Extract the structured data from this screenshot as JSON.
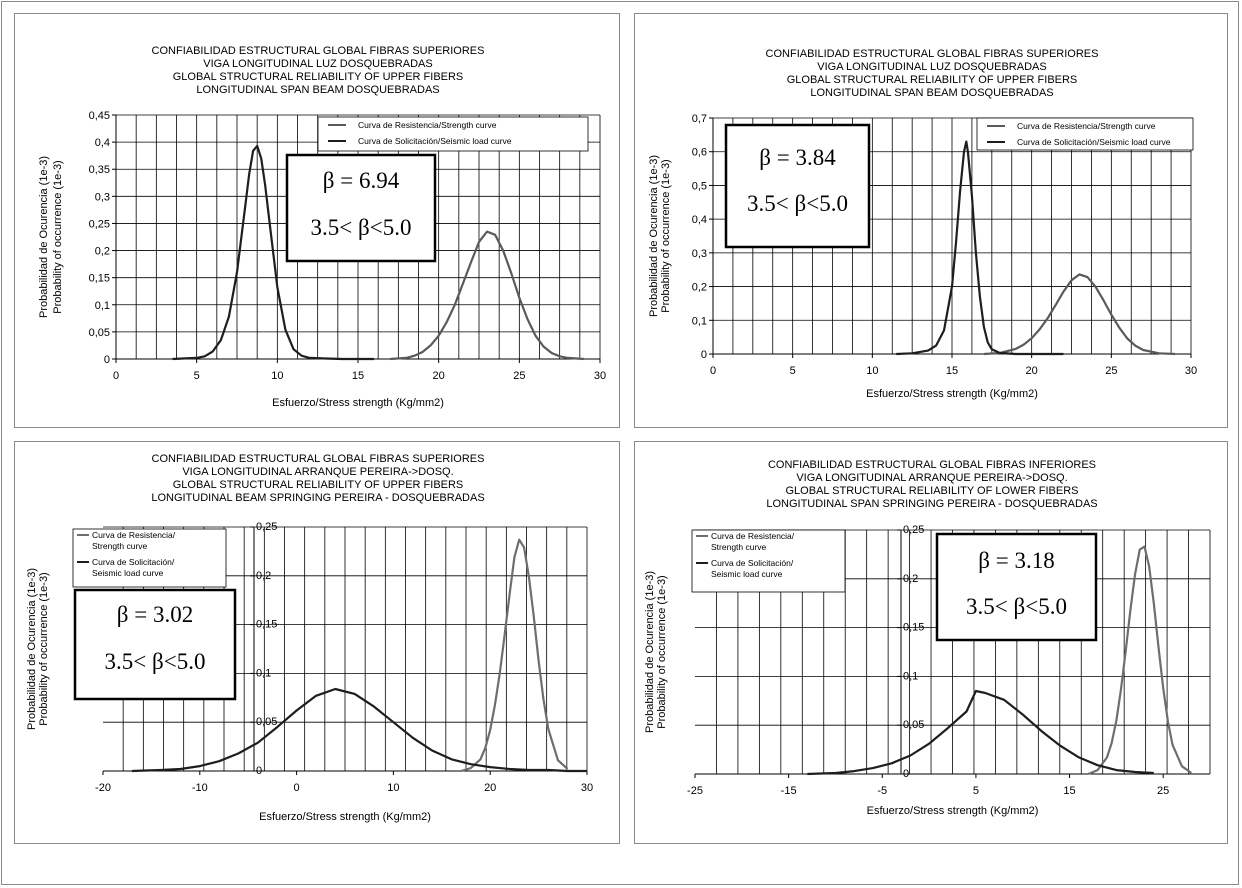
{
  "chart_data": [
    {
      "type": "line",
      "title": [
        "CONFIABILIDAD ESTRUCTURAL GLOBAL FIBRAS SUPERIORES",
        "VIGA LONGITUDINAL LUZ DOSQUEBRADAS",
        "GLOBAL STRUCTURAL RELIABILITY OF UPPER FIBERS",
        "LONGITUDINAL SPAN BEAM DOSQUEBRADAS"
      ],
      "xlabel": "Esfuerzo/Stress strength (Kg/mm2)",
      "ylabel": [
        "Probabilidad de Ocurencia (1e-3)",
        "Probability of occurrence (1e-3)"
      ],
      "xlim": [
        0,
        30
      ],
      "ylim": [
        0,
        0.45
      ],
      "xticks": [
        0,
        5,
        10,
        15,
        20,
        25,
        30
      ],
      "yticks": [
        0,
        0.05,
        0.1,
        0.15,
        0.2,
        0.25,
        0.3,
        0.35,
        0.4,
        0.45
      ],
      "xtick_labels": [
        "0",
        "5",
        "10",
        "15",
        "20",
        "25",
        "30"
      ],
      "ytick_labels": [
        "0",
        "0,05",
        "0,1",
        "0,15",
        "0,2",
        "0,25",
        "0,3",
        "0,35",
        "0,4",
        "0,45"
      ],
      "grid": true,
      "legend_position": "top-right",
      "series": [
        {
          "name": "Curva de Resistencia/Strength curve",
          "color": "#5a5a5a",
          "x": [
            17,
            18,
            18.5,
            19,
            19.5,
            20,
            20.5,
            21,
            21.5,
            22,
            22.5,
            23,
            23.5,
            24,
            24.5,
            25,
            25.5,
            26,
            26.5,
            27,
            27.5,
            28,
            29
          ],
          "y": [
            0,
            0.002,
            0.006,
            0.013,
            0.025,
            0.043,
            0.068,
            0.1,
            0.139,
            0.178,
            0.216,
            0.235,
            0.229,
            0.2,
            0.158,
            0.113,
            0.074,
            0.043,
            0.023,
            0.011,
            0.005,
            0.002,
            0
          ]
        },
        {
          "name": "Curva de Solicitación/Seismic load curve",
          "color": "#1e1e1e",
          "x": [
            3.5,
            5,
            5.5,
            6,
            6.5,
            7,
            7.5,
            8,
            8.25,
            8.5,
            8.75,
            9,
            9.25,
            9.5,
            10,
            10.5,
            11,
            11.5,
            12,
            13,
            14,
            16
          ],
          "y": [
            0,
            0.002,
            0.005,
            0.014,
            0.035,
            0.078,
            0.16,
            0.28,
            0.34,
            0.384,
            0.393,
            0.37,
            0.32,
            0.256,
            0.133,
            0.054,
            0.018,
            0.006,
            0.002,
            0.001,
            0,
            0
          ]
        }
      ],
      "annotation": {
        "beta": "β = 6.94",
        "range": "3.5< β<5.0"
      }
    },
    {
      "type": "line",
      "title": [
        "CONFIABILIDAD ESTRUCTURAL GLOBAL FIBRAS SUPERIORES",
        "VIGA LONGITUDINAL LUZ DOSQUEBRADAS",
        "GLOBAL STRUCTURAL RELIABILITY OF UPPER FIBERS",
        "LONGITUDINAL SPAN BEAM DOSQUEBRADAS"
      ],
      "xlabel": "Esfuerzo/Stress strength (Kg/mm2)",
      "ylabel": [
        "Probabilidad de Ocurencia (1e-3)",
        "Probability of occurrence (1e-3)"
      ],
      "xlim": [
        0,
        30
      ],
      "ylim": [
        0,
        0.7
      ],
      "xticks": [
        0,
        5,
        10,
        15,
        20,
        25,
        30
      ],
      "yticks": [
        0,
        0.1,
        0.2,
        0.3,
        0.4,
        0.5,
        0.6,
        0.7
      ],
      "xtick_labels": [
        "0",
        "5",
        "10",
        "15",
        "20",
        "25",
        "30"
      ],
      "ytick_labels": [
        "0",
        "0,1",
        "0,2",
        "0,3",
        "0,4",
        "0,5",
        "0,6",
        "0,7"
      ],
      "grid": true,
      "legend_position": "top-right",
      "series": [
        {
          "name": "Curva de Resistencia/Strength curve",
          "color": "#5a5a5a",
          "x": [
            17,
            18,
            19,
            19.5,
            20,
            20.5,
            21,
            21.5,
            22,
            22.5,
            23,
            23.5,
            24,
            24.5,
            25,
            25.5,
            26,
            26.5,
            27,
            28,
            29
          ],
          "y": [
            0,
            0.003,
            0.015,
            0.028,
            0.047,
            0.073,
            0.106,
            0.145,
            0.185,
            0.219,
            0.236,
            0.228,
            0.2,
            0.16,
            0.117,
            0.078,
            0.046,
            0.025,
            0.012,
            0.002,
            0
          ]
        },
        {
          "name": "Curva de Solicitación/Seismic load curve",
          "color": "#1e1e1e",
          "x": [
            11.5,
            12.5,
            13.5,
            14,
            14.5,
            15,
            15.25,
            15.5,
            15.75,
            15.9,
            16,
            16.25,
            16.5,
            16.75,
            17,
            17.25,
            17.5,
            18,
            19,
            20,
            22
          ],
          "y": [
            0,
            0.002,
            0.01,
            0.025,
            0.07,
            0.2,
            0.33,
            0.48,
            0.6,
            0.63,
            0.6,
            0.47,
            0.3,
            0.17,
            0.08,
            0.034,
            0.014,
            0.003,
            0,
            0,
            0
          ]
        }
      ],
      "annotation": {
        "beta": "β = 3.84",
        "range": "3.5< β<5.0"
      }
    },
    {
      "type": "line",
      "title": [
        "CONFIABILIDAD ESTRUCTURAL GLOBAL FIBRAS SUPERIORES",
        "VIGA LONGITUDINAL ARRANQUE PEREIRA->DOSQ.",
        "GLOBAL STRUCTURAL RELIABILITY OF UPPER FIBERS",
        "LONGITUDINAL BEAM SPRINGING PEREIRA - DOSQUEBRADAS"
      ],
      "xlabel": "Esfuerzo/Stress strength (Kg/mm2)",
      "ylabel": [
        "Probabilidad de Ocurencia (1e-3)",
        "Probability of occurrence (1e-3)"
      ],
      "xlim": [
        -20,
        30
      ],
      "ylim": [
        0,
        0.25
      ],
      "xticks": [
        -20,
        -10,
        0,
        10,
        20,
        30
      ],
      "yticks": [
        0,
        0.05,
        0.1,
        0.15,
        0.2,
        0.25
      ],
      "xtick_labels": [
        "-20",
        "-10",
        "0",
        "10",
        "20",
        "30"
      ],
      "ytick_labels": [
        "0",
        "0,05",
        "0,1",
        "0,15",
        "0,2",
        "0,25"
      ],
      "grid": true,
      "legend_position": "top-left",
      "series": [
        {
          "name": "Curva de Resistencia/ Strength curve",
          "color": "#6e6e6e",
          "x": [
            17,
            18,
            19,
            19.5,
            20,
            20.5,
            21,
            21.5,
            22,
            22.5,
            23,
            23.5,
            24,
            24.5,
            25,
            25.5,
            26,
            27,
            28
          ],
          "y": [
            0,
            0.003,
            0.012,
            0.024,
            0.042,
            0.068,
            0.101,
            0.14,
            0.181,
            0.219,
            0.237,
            0.229,
            0.199,
            0.158,
            0.113,
            0.074,
            0.043,
            0.011,
            0.002
          ]
        },
        {
          "name": "Curva de Solicitación/ Seismic load curve",
          "color": "#1e1e1e",
          "x": [
            -17,
            -14,
            -12,
            -10,
            -8,
            -6,
            -4,
            -2,
            0,
            2,
            4,
            6,
            8,
            10,
            12,
            14,
            16,
            18,
            20,
            22,
            24,
            26,
            28,
            30
          ],
          "y": [
            0,
            0.001,
            0.002,
            0.005,
            0.01,
            0.018,
            0.029,
            0.045,
            0.062,
            0.077,
            0.084,
            0.079,
            0.066,
            0.05,
            0.034,
            0.021,
            0.012,
            0.007,
            0.004,
            0.002,
            0.001,
            0.001,
            0,
            0
          ]
        }
      ],
      "annotation": {
        "beta": "β = 3.02",
        "range": "3.5< β<5.0"
      }
    },
    {
      "type": "line",
      "title": [
        "CONFIABILIDAD ESTRUCTURAL GLOBAL FIBRAS INFERIORES",
        "VIGA LONGITUDINAL ARRANQUE PEREIRA->DOSQ.",
        "GLOBAL STRUCTURAL RELIABILITY OF LOWER FIBERS",
        "LONGITUDINAL SPAN SPRINGING PEREIRA - DOSQUEBRADAS"
      ],
      "xlabel": "Esfuerzo/Stress strength (Kg/mm2)",
      "ylabel": [
        "Probabilidad de Ocurencia (1e-3)",
        "Probability of occurrence (1e-3)"
      ],
      "xlim": [
        -25,
        30
      ],
      "ylim": [
        0,
        0.25
      ],
      "xticks": [
        -25,
        -15,
        -5,
        5,
        15,
        25
      ],
      "yticks": [
        0,
        0.05,
        0.1,
        0.15,
        0.2,
        0.25
      ],
      "xtick_labels": [
        "-25",
        "-15",
        "-5",
        "5",
        "15",
        "25"
      ],
      "ytick_labels": [
        "0",
        "0,05",
        "0,1",
        "0,15",
        "0,2",
        "0,25"
      ],
      "grid": true,
      "legend_position": "top-left",
      "series": [
        {
          "name": "Curva de Resistencia/ Strength curve",
          "color": "#6e6e6e",
          "x": [
            17,
            18,
            19,
            19.5,
            20,
            20.5,
            21,
            21.5,
            22,
            22.5,
            23,
            23.5,
            24,
            24.5,
            25,
            25.5,
            26,
            27,
            28
          ],
          "y": [
            0,
            0.004,
            0.017,
            0.032,
            0.055,
            0.087,
            0.126,
            0.168,
            0.205,
            0.23,
            0.233,
            0.213,
            0.175,
            0.13,
            0.088,
            0.054,
            0.03,
            0.008,
            0.001
          ]
        },
        {
          "name": "Curva de Solicitación/ Seismic load curve",
          "color": "#1e1e1e",
          "x": [
            -13,
            -10,
            -8,
            -6,
            -4,
            -2,
            0,
            2,
            4,
            5,
            6,
            8,
            10,
            12,
            14,
            16,
            18,
            20,
            22,
            24
          ],
          "y": [
            0,
            0.001,
            0.003,
            0.006,
            0.011,
            0.019,
            0.031,
            0.047,
            0.064,
            0.085,
            0.083,
            0.076,
            0.061,
            0.044,
            0.029,
            0.017,
            0.009,
            0.004,
            0.002,
            0.001
          ]
        }
      ],
      "annotation": {
        "beta": "β = 3.18",
        "range": "3.5< β<5.0"
      }
    }
  ]
}
